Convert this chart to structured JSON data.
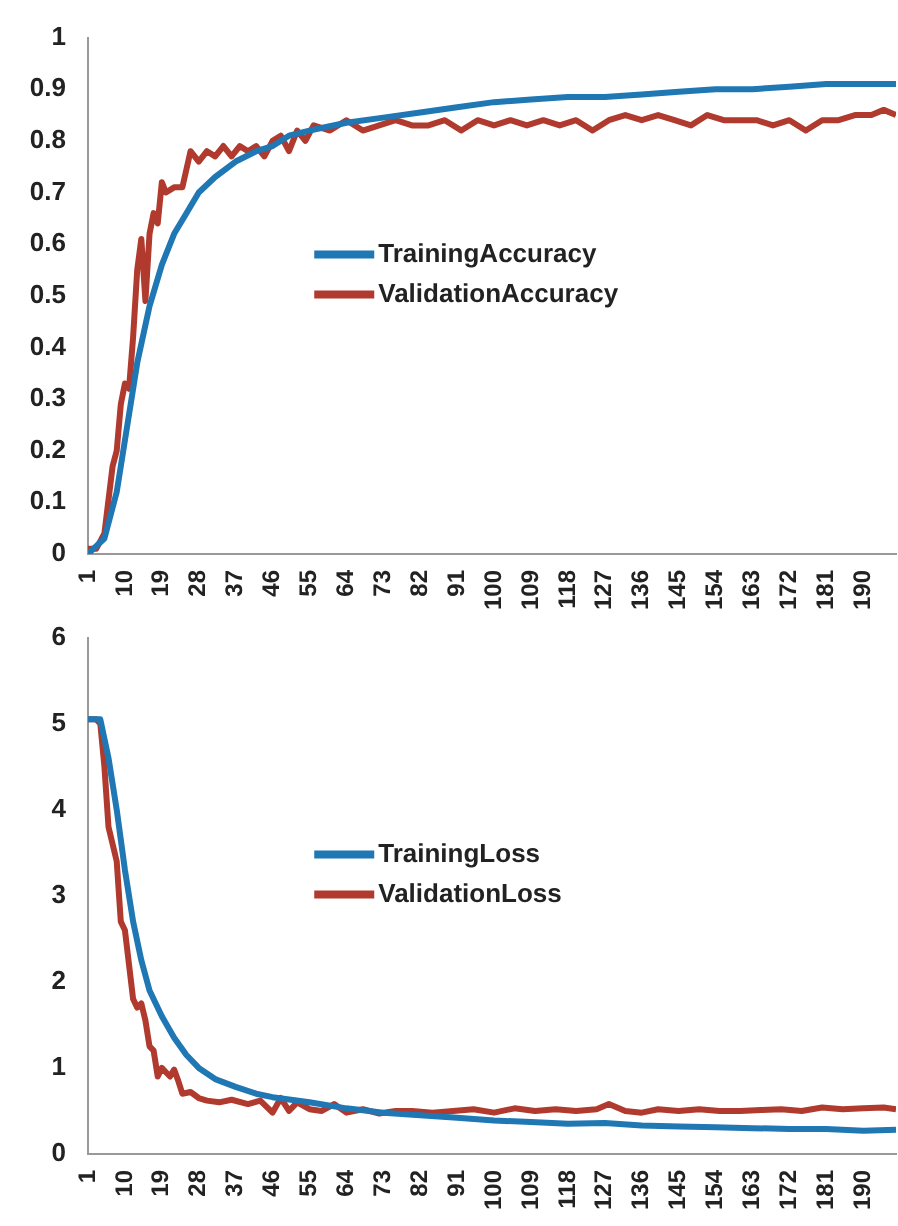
{
  "chart_data": [
    {
      "type": "line",
      "grid": false,
      "legend": "center",
      "marker": "none",
      "line_style": "solid",
      "xlim": [
        1,
        198
      ],
      "ylim": [
        0,
        1
      ],
      "yticks": [
        0,
        0.1,
        0.2,
        0.3,
        0.4,
        0.5,
        0.6,
        0.7,
        0.8,
        0.9,
        1
      ],
      "xticks": [
        1,
        10,
        19,
        28,
        37,
        46,
        55,
        64,
        73,
        82,
        91,
        100,
        109,
        118,
        127,
        136,
        145,
        154,
        163,
        172,
        181,
        190
      ],
      "series": [
        {
          "name": "TrainingAccuracy",
          "color": "#1f77b4",
          "x": [
            1,
            5,
            8,
            10,
            13,
            16,
            19,
            22,
            25,
            28,
            32,
            37,
            42,
            46,
            50,
            55,
            64,
            73,
            82,
            91,
            100,
            109,
            118,
            127,
            136,
            145,
            154,
            163,
            172,
            181,
            190,
            198
          ],
          "values": [
            0,
            0.03,
            0.12,
            0.22,
            0.37,
            0.48,
            0.56,
            0.62,
            0.66,
            0.7,
            0.73,
            0.76,
            0.78,
            0.79,
            0.81,
            0.82,
            0.835,
            0.845,
            0.855,
            0.865,
            0.875,
            0.88,
            0.885,
            0.885,
            0.89,
            0.895,
            0.9,
            0.9,
            0.905,
            0.91,
            0.91,
            0.91
          ]
        },
        {
          "name": "ValidationAccuracy",
          "color": "#b03a2e",
          "x": [
            1,
            3,
            5,
            7,
            8,
            9,
            10,
            11,
            12,
            13,
            14,
            15,
            16,
            17,
            18,
            19,
            20,
            22,
            24,
            26,
            28,
            30,
            32,
            34,
            36,
            38,
            40,
            42,
            44,
            46,
            48,
            50,
            52,
            54,
            56,
            60,
            64,
            68,
            72,
            76,
            80,
            84,
            88,
            92,
            96,
            100,
            104,
            108,
            112,
            116,
            120,
            124,
            128,
            132,
            136,
            140,
            144,
            148,
            152,
            156,
            160,
            164,
            168,
            172,
            176,
            180,
            184,
            188,
            192,
            195,
            198
          ],
          "values": [
            0.01,
            0.01,
            0.04,
            0.17,
            0.2,
            0.29,
            0.33,
            0.32,
            0.42,
            0.55,
            0.61,
            0.49,
            0.62,
            0.66,
            0.64,
            0.72,
            0.7,
            0.71,
            0.71,
            0.78,
            0.76,
            0.78,
            0.77,
            0.79,
            0.77,
            0.79,
            0.78,
            0.79,
            0.77,
            0.8,
            0.81,
            0.78,
            0.82,
            0.8,
            0.83,
            0.82,
            0.84,
            0.82,
            0.83,
            0.84,
            0.83,
            0.83,
            0.84,
            0.82,
            0.84,
            0.83,
            0.84,
            0.83,
            0.84,
            0.83,
            0.84,
            0.82,
            0.84,
            0.85,
            0.84,
            0.85,
            0.84,
            0.83,
            0.85,
            0.84,
            0.84,
            0.84,
            0.83,
            0.84,
            0.82,
            0.84,
            0.84,
            0.85,
            0.85,
            0.86,
            0.85
          ]
        }
      ]
    },
    {
      "type": "line",
      "grid": false,
      "legend": "center",
      "marker": "none",
      "line_style": "solid",
      "xlim": [
        1,
        198
      ],
      "ylim": [
        0,
        6
      ],
      "yticks": [
        0,
        1,
        2,
        3,
        4,
        5,
        6
      ],
      "xticks": [
        1,
        10,
        19,
        28,
        37,
        46,
        55,
        64,
        73,
        82,
        91,
        100,
        109,
        118,
        127,
        136,
        145,
        154,
        163,
        172,
        181,
        190
      ],
      "series": [
        {
          "name": "TrainingLoss",
          "color": "#1f77b4",
          "x": [
            1,
            4,
            6,
            8,
            10,
            12,
            14,
            16,
            19,
            22,
            25,
            28,
            32,
            37,
            42,
            46,
            55,
            64,
            73,
            82,
            91,
            100,
            109,
            118,
            127,
            136,
            145,
            154,
            163,
            172,
            181,
            190,
            198
          ],
          "values": [
            5.05,
            5.05,
            4.6,
            4,
            3.3,
            2.7,
            2.25,
            1.9,
            1.6,
            1.35,
            1.15,
            1,
            0.87,
            0.78,
            0.7,
            0.66,
            0.6,
            0.53,
            0.48,
            0.45,
            0.42,
            0.39,
            0.37,
            0.35,
            0.36,
            0.33,
            0.32,
            0.31,
            0.3,
            0.29,
            0.29,
            0.27,
            0.28
          ]
        },
        {
          "name": "ValidationLoss",
          "color": "#b03a2e",
          "x": [
            1,
            3,
            4,
            5,
            6,
            7,
            8,
            9,
            10,
            11,
            12,
            13,
            14,
            15,
            16,
            17,
            18,
            19,
            20,
            21,
            22,
            23,
            24,
            26,
            28,
            30,
            33,
            36,
            40,
            43,
            46,
            48,
            50,
            52,
            55,
            58,
            61,
            64,
            68,
            72,
            76,
            80,
            85,
            90,
            95,
            100,
            105,
            110,
            115,
            120,
            125,
            128,
            132,
            136,
            140,
            145,
            150,
            155,
            160,
            165,
            170,
            175,
            180,
            185,
            190,
            195,
            198
          ],
          "values": [
            5.05,
            5.05,
            5,
            4.5,
            3.8,
            3.6,
            3.4,
            2.7,
            2.6,
            2.2,
            1.8,
            1.7,
            1.75,
            1.55,
            1.25,
            1.2,
            0.9,
            1,
            0.95,
            0.9,
            0.98,
            0.85,
            0.7,
            0.72,
            0.65,
            0.62,
            0.6,
            0.63,
            0.58,
            0.62,
            0.48,
            0.65,
            0.5,
            0.6,
            0.52,
            0.5,
            0.58,
            0.48,
            0.52,
            0.47,
            0.5,
            0.5,
            0.48,
            0.5,
            0.52,
            0.48,
            0.53,
            0.5,
            0.52,
            0.5,
            0.52,
            0.58,
            0.5,
            0.48,
            0.52,
            0.5,
            0.52,
            0.5,
            0.5,
            0.51,
            0.52,
            0.5,
            0.54,
            0.52,
            0.53,
            0.54,
            0.52
          ]
        }
      ]
    }
  ]
}
